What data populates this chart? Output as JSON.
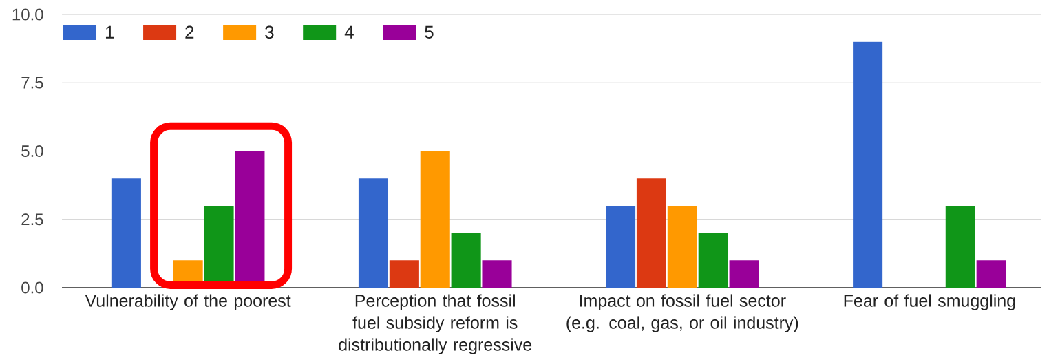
{
  "chart_data": {
    "type": "bar",
    "categories": [
      "Vulnerability of the poorest",
      "Perception that fossil fuel subsidy reform is distributionally regressive",
      "Impact on fossil fuel sector (e.g. coal, gas, or oil industry)",
      "Fear of fuel smuggling"
    ],
    "series": [
      {
        "name": "1",
        "color": "#3366cc",
        "values": [
          4,
          4,
          3,
          9
        ]
      },
      {
        "name": "2",
        "color": "#dc3912",
        "values": [
          0,
          1,
          4,
          0
        ]
      },
      {
        "name": "3",
        "color": "#ff9900",
        "values": [
          1,
          5,
          3,
          0
        ]
      },
      {
        "name": "4",
        "color": "#109618",
        "values": [
          3,
          2,
          2,
          3
        ]
      },
      {
        "name": "5",
        "color": "#990099",
        "values": [
          5,
          1,
          1,
          1
        ]
      }
    ],
    "ylim": [
      0,
      10
    ],
    "yticks": [
      {
        "value": 0,
        "label": "0.0"
      },
      2.5,
      {
        "value": 5,
        "label": "5.0"
      },
      7.5,
      {
        "value": 10,
        "label": "10.0"
      }
    ],
    "grid": "y",
    "legend": "top left"
  }
}
